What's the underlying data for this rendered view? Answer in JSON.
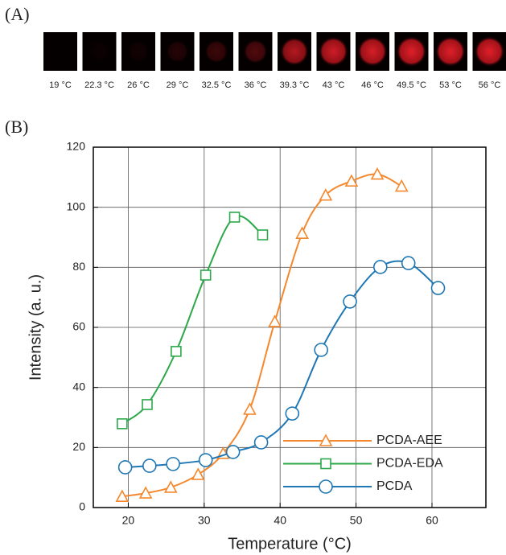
{
  "panel_a": {
    "label": "(A)",
    "images": [
      "19 °C",
      "22.3 °C",
      "26 °C",
      "29 °C",
      "32.5 °C",
      "36 °C",
      "39.3 °C",
      "43 °C",
      "46 °C",
      "49.5 °C",
      "53 °C",
      "56 °C"
    ]
  },
  "chart_data": {
    "type": "line",
    "panel_label": "(B)",
    "x_label": "Temperature (°C)",
    "y_label": "Intensity (a. u.)",
    "xlim": [
      15.4,
      67.1
    ],
    "ylim": [
      0,
      120
    ],
    "xticks": [
      20,
      30,
      40,
      50,
      60
    ],
    "yticks": [
      0,
      20,
      40,
      60,
      80,
      100,
      120
    ],
    "grid": true,
    "legend": "lower right",
    "series": [
      {
        "name": "PCDA-AEE",
        "color": "#f4882e",
        "marker": "triangle",
        "x": [
          19.2,
          22.3,
          25.6,
          29.2,
          32.5,
          36,
          39.3,
          42.9,
          46,
          49.4,
          52.8,
          56
        ],
        "values": [
          3.7,
          4.8,
          6.7,
          11,
          18,
          32.7,
          61.9,
          91.3,
          104,
          108.7,
          111,
          107
        ]
      },
      {
        "name": "PCDA-EDA",
        "color": "#2ca84a",
        "marker": "square",
        "x": [
          19.2,
          22.5,
          26.3,
          30.2,
          34,
          37.7
        ],
        "values": [
          27.9,
          34.3,
          52,
          77.4,
          96.7,
          90.8
        ]
      },
      {
        "name": "PCDA",
        "color": "#1f77b4",
        "marker": "circle",
        "x": [
          19.6,
          22.8,
          25.9,
          30.2,
          33.8,
          37.5,
          41.6,
          45.4,
          49.2,
          53.2,
          56.9,
          60.8
        ],
        "values": [
          13.4,
          13.9,
          14.5,
          15.8,
          18.5,
          21.7,
          31.3,
          52.5,
          68.6,
          80.1,
          81.4,
          73.1
        ]
      }
    ]
  }
}
